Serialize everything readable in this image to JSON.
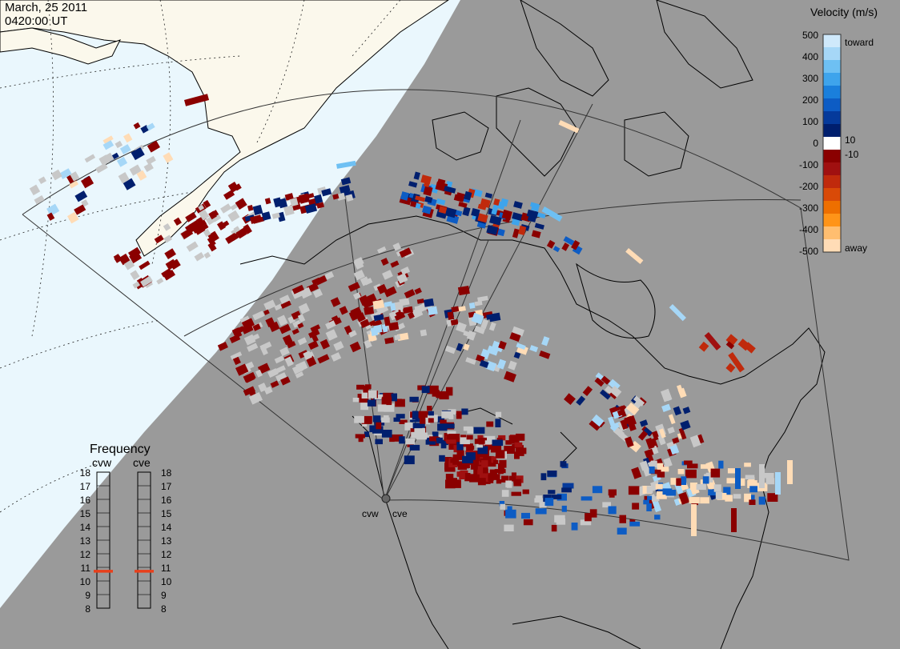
{
  "header": {
    "date": "March, 25 2011",
    "time": "0420:00 UT"
  },
  "colors": {
    "ocean": "#eaf7fd",
    "night": "#9a9a9a",
    "land_day": "#fbf8ec",
    "ground_scatter": "#c8c8c8",
    "coast": "#000000",
    "fov": "#333333"
  },
  "radars": [
    {
      "id": "cvw",
      "label": "cvw",
      "frequency_mhz": 10.7
    },
    {
      "id": "cve",
      "label": "cve",
      "frequency_mhz": 10.7
    }
  ],
  "velocity_legend": {
    "title": "Velocity (m/s)",
    "labels": [
      "500",
      "400",
      "300",
      "200",
      "100",
      "10",
      "0",
      "-10",
      "-100",
      "-200",
      "-300",
      "-400",
      "-500"
    ],
    "toward_label": "toward",
    "away_label": "away",
    "colors": [
      "#cfe9fb",
      "#a6d7f7",
      "#6ec0f3",
      "#3ea4ec",
      "#1a7fdc",
      "#0d5cc4",
      "#053a9b",
      "#001f6e",
      "#ffffff",
      "#8a0000",
      "#a01010",
      "#c02a0c",
      "#d94a08",
      "#ee6f00",
      "#ff9418",
      "#ffbe70",
      "#ffdcb6"
    ]
  },
  "frequency_legend": {
    "title": "Frequency",
    "ticks": [
      "18",
      "17",
      "16",
      "15",
      "14",
      "13",
      "12",
      "11",
      "10",
      "9",
      "8"
    ],
    "marker_color": "#e8401c"
  }
}
